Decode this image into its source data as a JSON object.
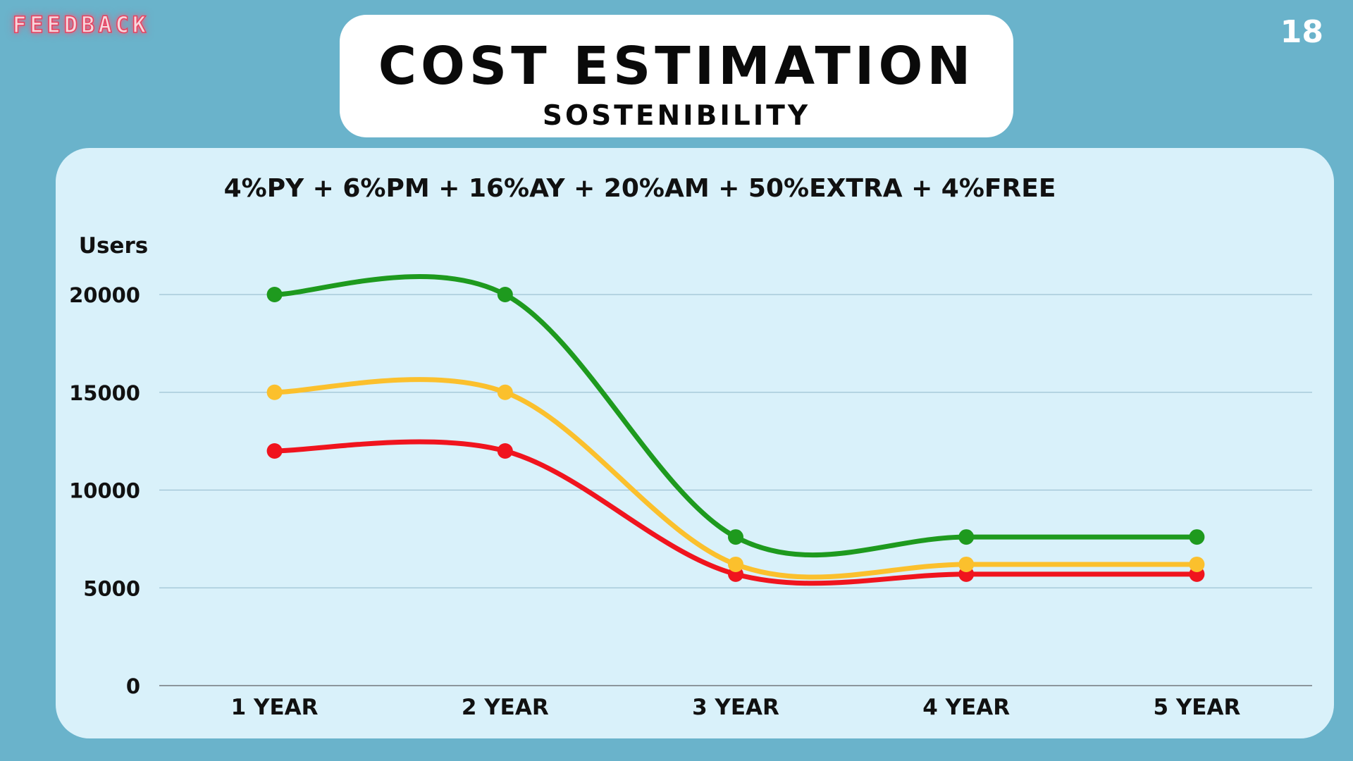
{
  "slide": {
    "logo_text": "FEEDBACK",
    "page_number": "18",
    "title": "COST ESTIMATION",
    "subtitle": "SOSTENIBILITY"
  },
  "chart_data": {
    "type": "line",
    "title": "4%PY + 6%PM + 16%AY + 20%AM + 50%EXTRA + 4%FREE",
    "ylabel": "Users",
    "xlabel": "",
    "categories": [
      "1 YEAR",
      "2 YEAR",
      "3 YEAR",
      "4 YEAR",
      "5 YEAR"
    ],
    "ylim": [
      0,
      20000
    ],
    "yticks": [
      "0",
      "5000",
      "10000",
      "15000",
      "20000"
    ],
    "grid": true,
    "legend": "none",
    "smooth": true,
    "series": [
      {
        "color": "#1e9a1e",
        "values": [
          20000,
          20000,
          7600,
          7600,
          7600
        ]
      },
      {
        "color": "#fbc02d",
        "values": [
          15000,
          15000,
          6200,
          6200,
          6200
        ]
      },
      {
        "color": "#f0141e",
        "values": [
          12000,
          12000,
          5700,
          5700,
          5700
        ]
      }
    ]
  }
}
